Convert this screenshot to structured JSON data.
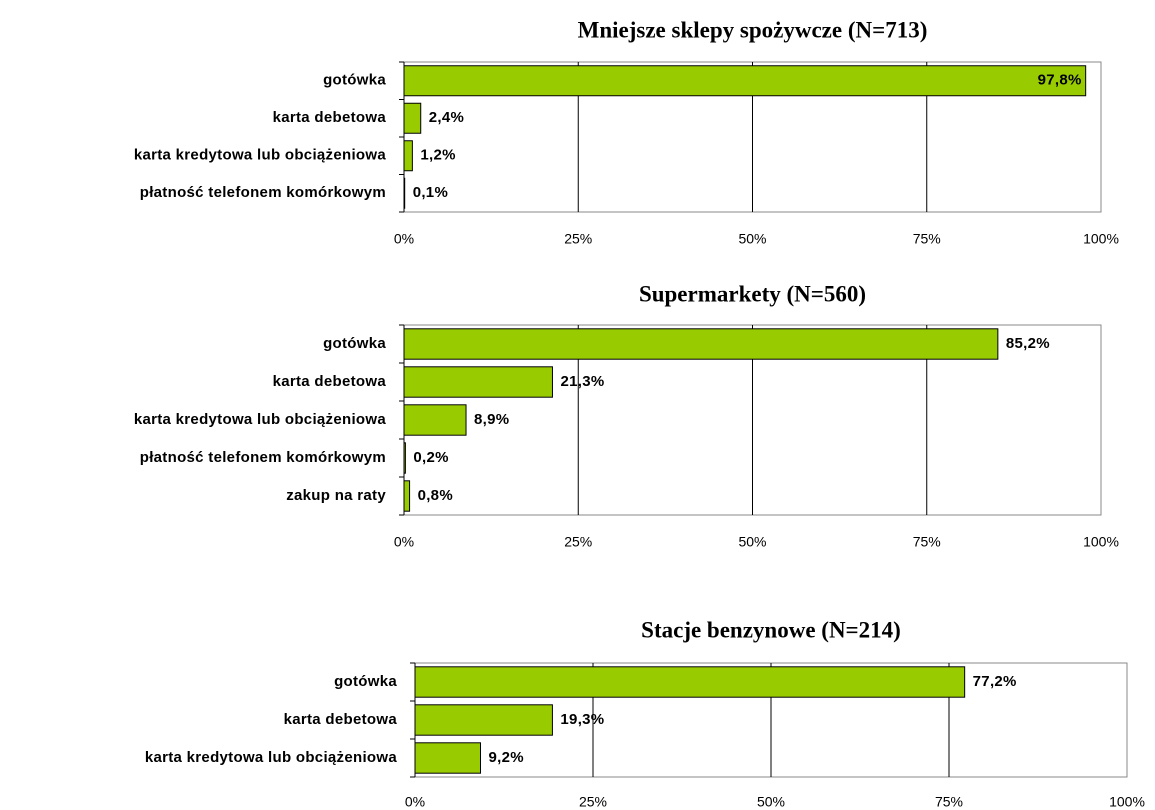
{
  "chart_data": [
    {
      "type": "bar",
      "orientation": "horizontal",
      "title": "Mniejsze sklepy spożywcze (N=713)",
      "categories": [
        "gotówka",
        "karta debetowa",
        "karta kredytowa lub obciążeniowa",
        "płatność telefonem komórkowym"
      ],
      "values": [
        97.8,
        2.4,
        1.2,
        0.1
      ],
      "value_labels": [
        "97,8%",
        "2,4%",
        "1,2%",
        "0,1%"
      ],
      "color": "#99cc00",
      "xlim": [
        0,
        100
      ],
      "xticks": [
        {
          "value": 0,
          "label": "0%"
        },
        {
          "value": 25,
          "label": "25%"
        },
        {
          "value": 50,
          "label": "50%"
        },
        {
          "value": 75,
          "label": "75%"
        },
        {
          "value": 100,
          "label": "100%"
        }
      ],
      "grid": true
    },
    {
      "type": "bar",
      "orientation": "horizontal",
      "title": "Supermarkety (N=560)",
      "categories": [
        "gotówka",
        "karta debetowa",
        "karta kredytowa lub obciążeniowa",
        "płatność telefonem komórkowym",
        "zakup na raty"
      ],
      "values": [
        85.2,
        21.3,
        8.9,
        0.2,
        0.8
      ],
      "value_labels": [
        "85,2%",
        "21,3%",
        "8,9%",
        "0,2%",
        "0,8%"
      ],
      "color": "#99cc00",
      "xlim": [
        0,
        100
      ],
      "xticks": [
        {
          "value": 0,
          "label": "0%"
        },
        {
          "value": 25,
          "label": "25%"
        },
        {
          "value": 50,
          "label": "50%"
        },
        {
          "value": 75,
          "label": "75%"
        },
        {
          "value": 100,
          "label": "100%"
        }
      ],
      "grid": true
    },
    {
      "type": "bar",
      "orientation": "horizontal",
      "title": "Stacje benzynowe (N=214)",
      "categories": [
        "gotówka",
        "karta debetowa",
        "karta kredytowa lub obciążeniowa"
      ],
      "values": [
        77.2,
        19.3,
        9.2
      ],
      "value_labels": [
        "77,2%",
        "19,3%",
        "9,2%"
      ],
      "color": "#99cc00",
      "xlim": [
        0,
        100
      ],
      "xticks": [
        {
          "value": 0,
          "label": "0%"
        },
        {
          "value": 25,
          "label": "25%"
        },
        {
          "value": 50,
          "label": "50%"
        },
        {
          "value": 75,
          "label": "75%"
        },
        {
          "value": 100,
          "label": "100%"
        }
      ],
      "grid": true
    }
  ]
}
